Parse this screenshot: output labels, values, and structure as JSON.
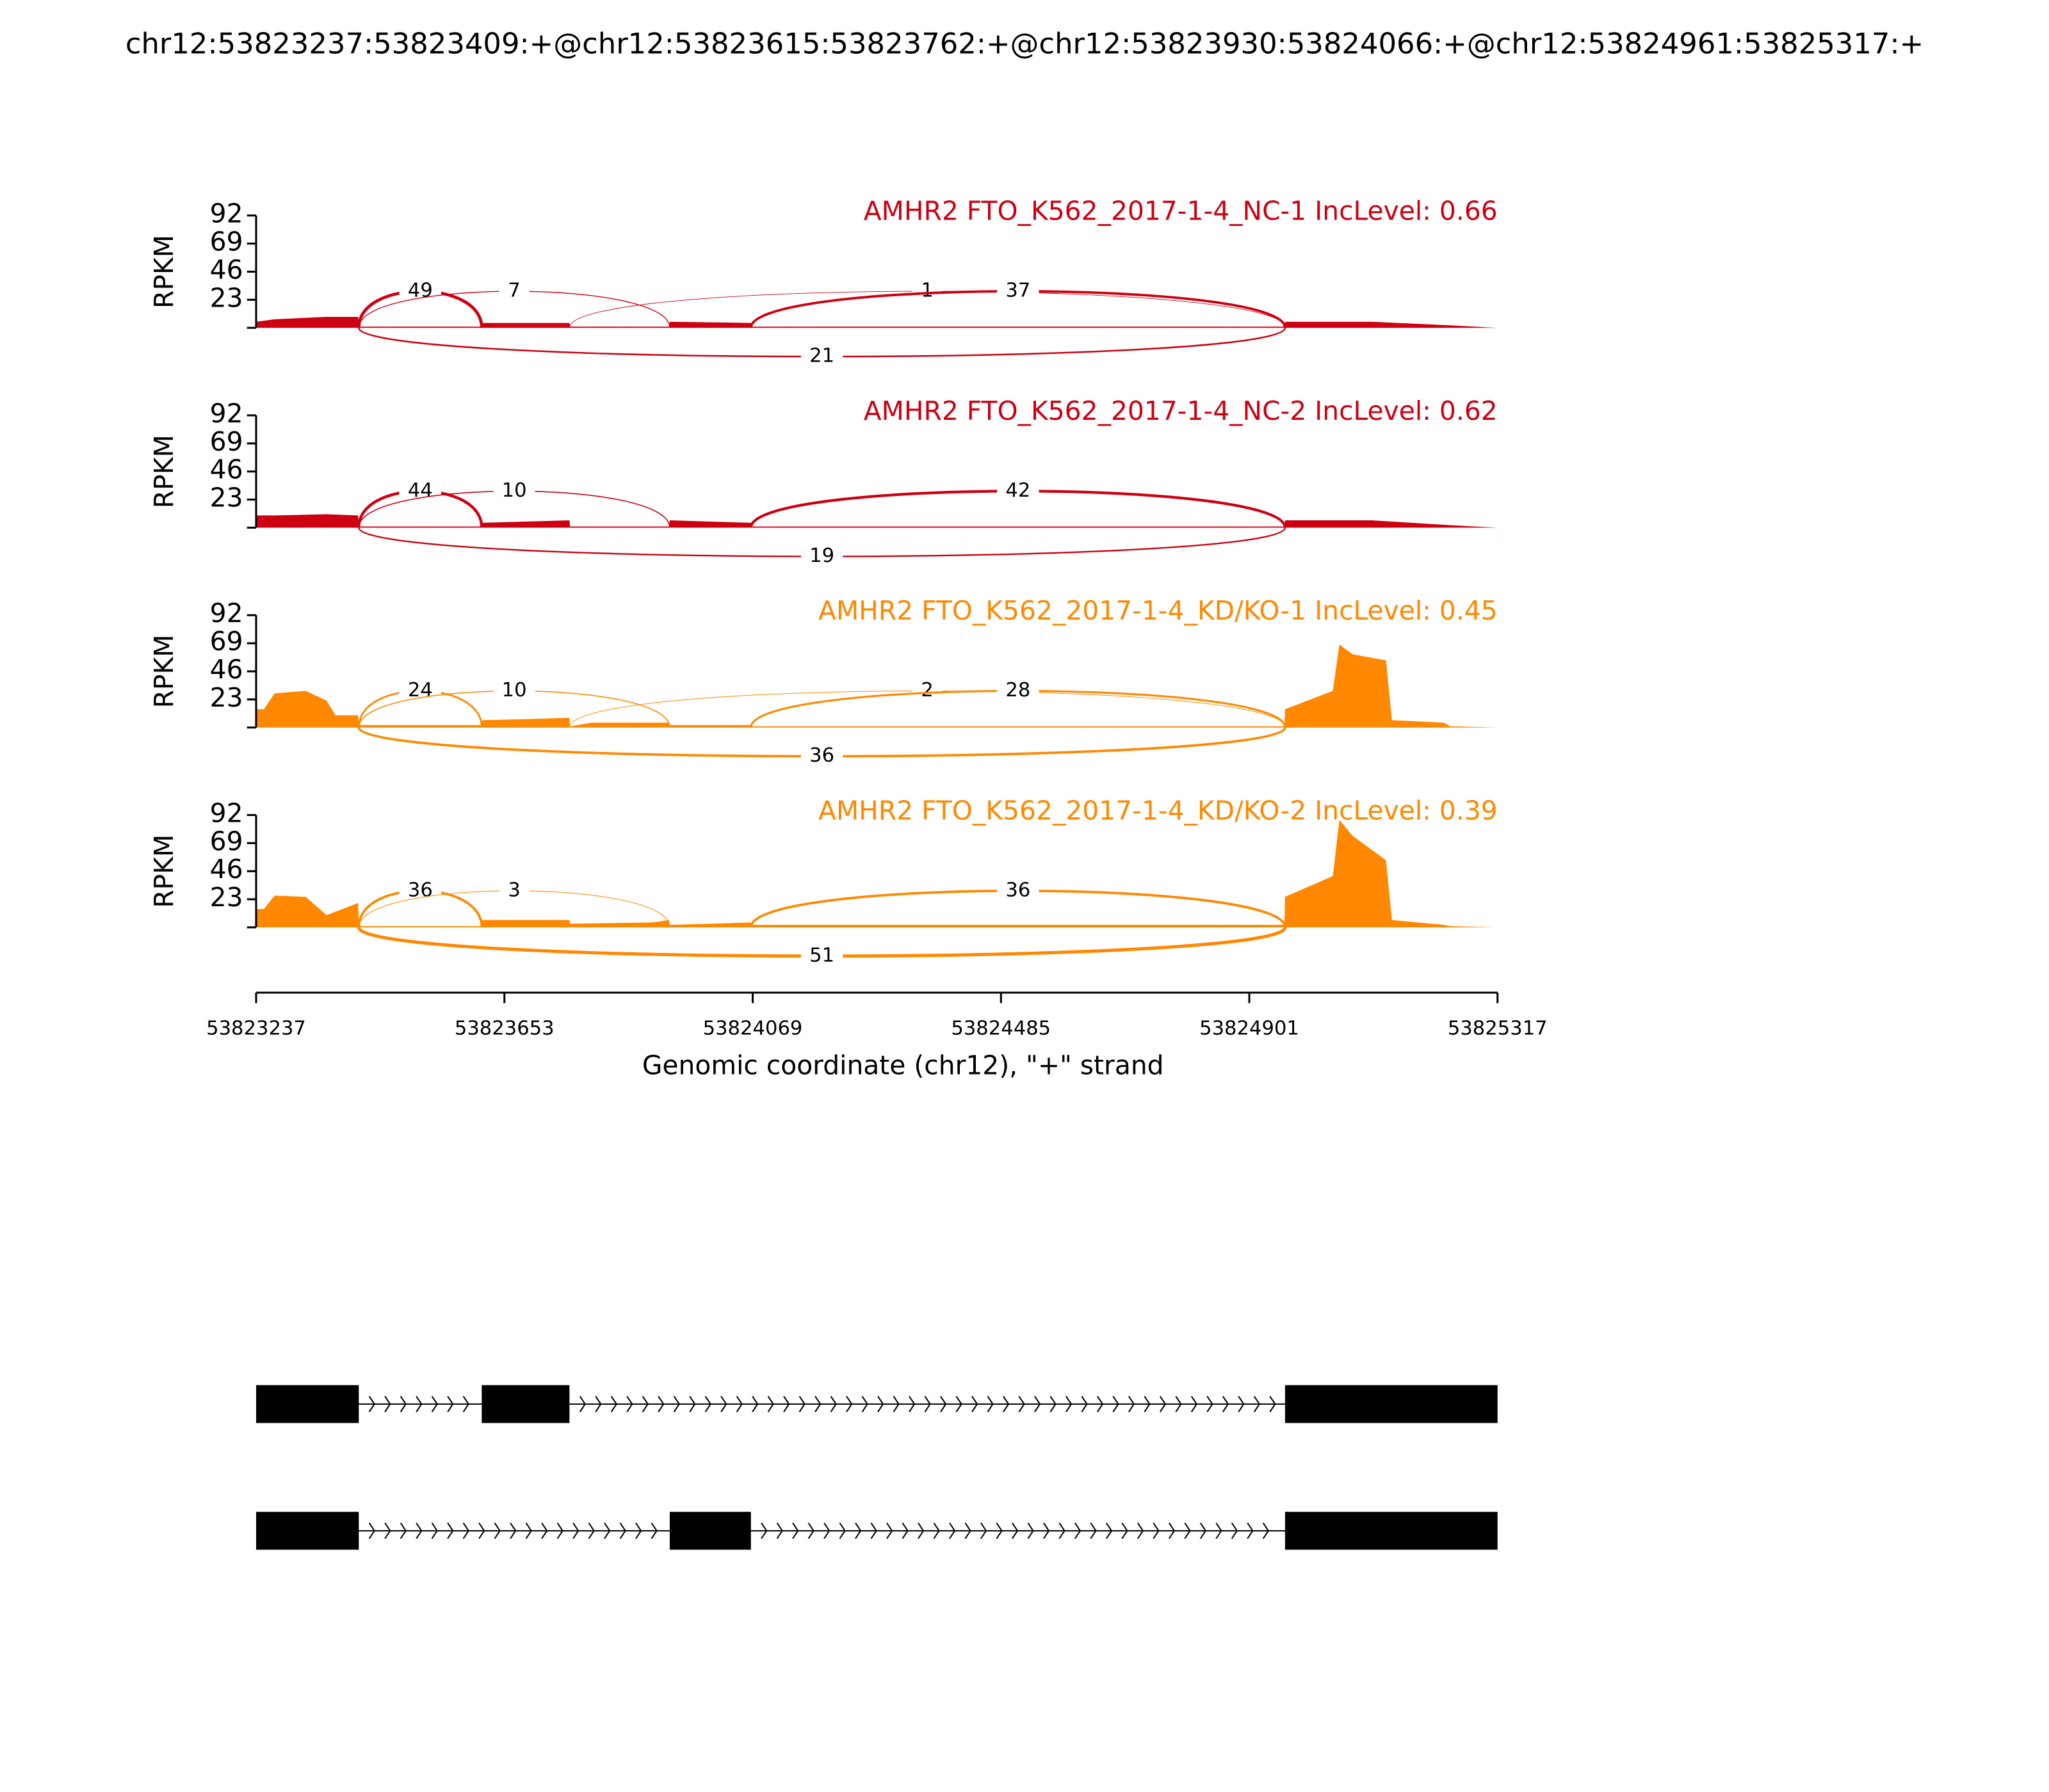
{
  "title": "chr12:53823237:53823409:+@chr12:53823615:53823762:+@chr12:53823930:53824066:+@chr12:53824961:53825317:+",
  "xaxis": {
    "xlim": [
      53823237,
      53825317
    ],
    "xticks": [
      53823237,
      53823653,
      53824069,
      53824485,
      53824901,
      53825317
    ],
    "xlabel": "Genomic coordinate (chr12), \"+\" strand"
  },
  "chart_data": [
    {
      "type": "area",
      "title": "AMHR2 FTO_K562_2017-1-4_NC-1 IncLevel: 0.66",
      "color": "#cc0011",
      "ylabel": "RPKM",
      "ylim": [
        0,
        92
      ],
      "yticks": [
        23,
        46,
        69,
        92
      ],
      "x": [
        53823237,
        53823268,
        53823355,
        53823408,
        53823409,
        53823615,
        53823616,
        53823762,
        53823763,
        53823929,
        53823930,
        53824066,
        53824067,
        53824960,
        53824961,
        53825107,
        53825238,
        53825317
      ],
      "values": [
        5,
        7,
        9,
        9,
        1,
        1,
        4,
        4,
        1,
        1,
        5,
        4,
        1,
        1,
        5,
        5,
        2,
        0
      ],
      "junctions": [
        {
          "from": 53823409,
          "to": 53823615,
          "count": 49,
          "side": "above"
        },
        {
          "from": 53823409,
          "to": 53823930,
          "count": 7,
          "side": "above"
        },
        {
          "from": 53823762,
          "to": 53824961,
          "count": 1,
          "side": "above"
        },
        {
          "from": 53824066,
          "to": 53824961,
          "count": 37,
          "side": "above"
        },
        {
          "from": 53823409,
          "to": 53824961,
          "count": 21,
          "side": "below"
        }
      ]
    },
    {
      "type": "area",
      "title": "AMHR2 FTO_K562_2017-1-4_NC-2 IncLevel: 0.62",
      "color": "#cc0011",
      "ylabel": "RPKM",
      "ylim": [
        0,
        92
      ],
      "yticks": [
        23,
        46,
        69,
        92
      ],
      "x": [
        53823237,
        53823268,
        53823355,
        53823408,
        53823409,
        53823615,
        53823616,
        53823762,
        53823763,
        53823929,
        53823930,
        53824066,
        53824067,
        53824960,
        53824961,
        53825107,
        53825238,
        53825317
      ],
      "values": [
        10,
        10,
        11,
        10,
        1,
        1,
        4,
        6,
        1,
        1,
        6,
        4,
        1,
        1,
        6,
        6,
        2,
        0
      ],
      "junctions": [
        {
          "from": 53823409,
          "to": 53823615,
          "count": 44,
          "side": "above"
        },
        {
          "from": 53823409,
          "to": 53823930,
          "count": 10,
          "side": "above"
        },
        {
          "from": 53824066,
          "to": 53824961,
          "count": 42,
          "side": "above"
        },
        {
          "from": 53823409,
          "to": 53824961,
          "count": 19,
          "side": "below"
        }
      ]
    },
    {
      "type": "area",
      "title": "AMHR2 FTO_K562_2017-1-4_KD/KO-1 IncLevel: 0.45",
      "color": "#ff8800",
      "ylabel": "RPKM",
      "ylim": [
        0,
        92
      ],
      "yticks": [
        23,
        46,
        69,
        92
      ],
      "x": [
        53823237,
        53823250,
        53823268,
        53823320,
        53823355,
        53823370,
        53823408,
        53823409,
        53823615,
        53823616,
        53823700,
        53823762,
        53823763,
        53823800,
        53823929,
        53823930,
        53824066,
        53824067,
        53824960,
        53824961,
        53825041,
        53825052,
        53825074,
        53825130,
        53825140,
        53825227,
        53825238,
        53825317
      ],
      "values": [
        15,
        15,
        28,
        30,
        22,
        10,
        10,
        2,
        2,
        6,
        7,
        8,
        1,
        4,
        4,
        2,
        2,
        1,
        1,
        15,
        30,
        68,
        60,
        55,
        6,
        4,
        1,
        0
      ],
      "junctions": [
        {
          "from": 53823409,
          "to": 53823615,
          "count": 24,
          "side": "above"
        },
        {
          "from": 53823409,
          "to": 53823930,
          "count": 10,
          "side": "above"
        },
        {
          "from": 53823762,
          "to": 53824961,
          "count": 2,
          "side": "above"
        },
        {
          "from": 53824066,
          "to": 53824961,
          "count": 28,
          "side": "above"
        },
        {
          "from": 53823409,
          "to": 53824961,
          "count": 36,
          "side": "below"
        }
      ]
    },
    {
      "type": "area",
      "title": "AMHR2 FTO_K562_2017-1-4_KD/KO-2 IncLevel: 0.39",
      "color": "#ff8800",
      "ylabel": "RPKM",
      "ylim": [
        0,
        92
      ],
      "yticks": [
        23,
        46,
        69,
        92
      ],
      "x": [
        53823237,
        53823250,
        53823268,
        53823320,
        53823355,
        53823408,
        53823409,
        53823615,
        53823616,
        53823762,
        53823763,
        53823900,
        53823929,
        53823930,
        53824066,
        53824067,
        53824960,
        53824961,
        53825041,
        53825052,
        53825074,
        53825130,
        53825140,
        53825227,
        53825238,
        53825317
      ],
      "values": [
        15,
        15,
        26,
        25,
        10,
        20,
        1,
        1,
        6,
        6,
        3,
        4,
        6,
        2,
        4,
        2,
        2,
        25,
        42,
        88,
        75,
        55,
        6,
        2,
        1,
        0
      ],
      "junctions": [
        {
          "from": 53823409,
          "to": 53823615,
          "count": 36,
          "side": "above"
        },
        {
          "from": 53823409,
          "to": 53823930,
          "count": 3,
          "side": "above"
        },
        {
          "from": 53824066,
          "to": 53824961,
          "count": 36,
          "side": "above"
        },
        {
          "from": 53823409,
          "to": 53824961,
          "count": 51,
          "side": "below"
        }
      ]
    }
  ],
  "transcripts": [
    {
      "exons": [
        [
          53823237,
          53823409
        ],
        [
          53823615,
          53823762
        ],
        [
          53824961,
          53825317
        ]
      ]
    },
    {
      "exons": [
        [
          53823237,
          53823409
        ],
        [
          53823930,
          53824066
        ],
        [
          53824961,
          53825317
        ]
      ]
    }
  ]
}
